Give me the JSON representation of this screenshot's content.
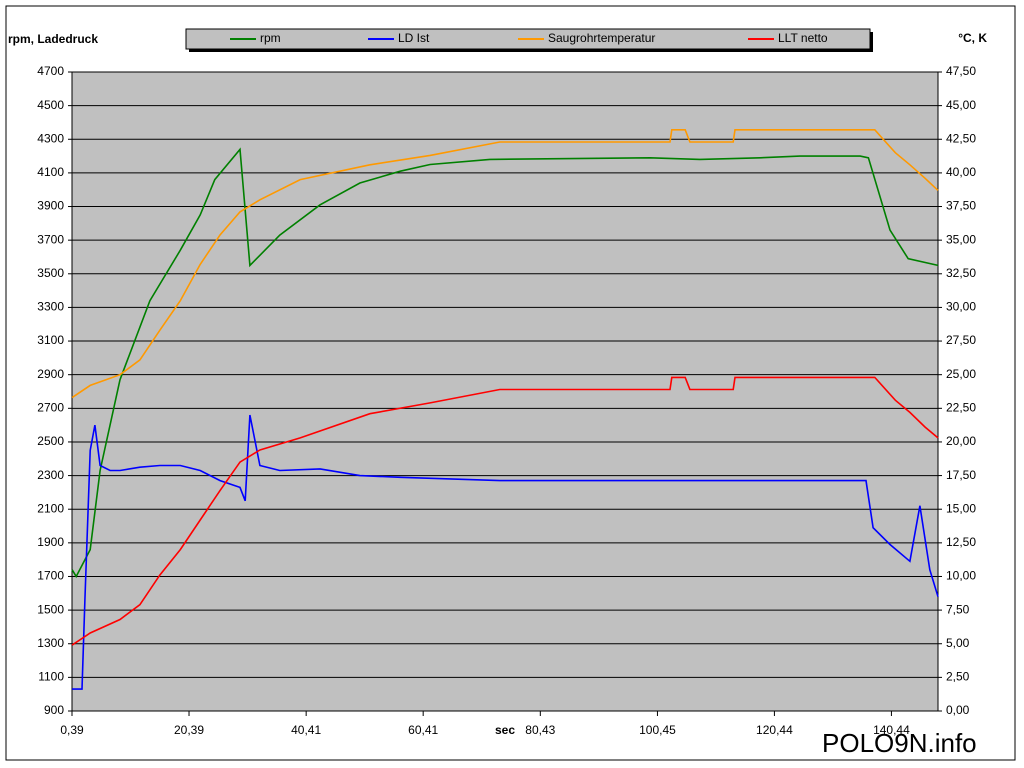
{
  "chart_data": {
    "type": "line",
    "y_label": "rpm, Ladedruck",
    "y2_label": "°C, K",
    "x_label": "sec",
    "watermark": "POLO9N.info",
    "xlim": [
      0.39,
      148.4
    ],
    "xticks": [
      {
        "value": 0.39,
        "label": "0,39"
      },
      {
        "value": 20.39,
        "label": "20,39"
      },
      {
        "value": 40.41,
        "label": "40,41"
      },
      {
        "value": 60.41,
        "label": "60,41"
      },
      {
        "value": 80.43,
        "label": "80,43"
      },
      {
        "value": 100.45,
        "label": "100,45"
      },
      {
        "value": 120.44,
        "label": "120,44"
      },
      {
        "value": 140.44,
        "label": "140,44"
      }
    ],
    "ylim": [
      900,
      4700
    ],
    "yticks": [
      900,
      1100,
      1300,
      1500,
      1700,
      1900,
      2100,
      2300,
      2500,
      2700,
      2900,
      3100,
      3300,
      3500,
      3700,
      3900,
      4100,
      4300,
      4500,
      4700
    ],
    "y2lim": [
      0,
      47.5
    ],
    "y2ticks": [
      {
        "value": 0,
        "label": "0,00"
      },
      {
        "value": 2.5,
        "label": "2,50"
      },
      {
        "value": 5,
        "label": "5,00"
      },
      {
        "value": 7.5,
        "label": "7,50"
      },
      {
        "value": 10,
        "label": "10,00"
      },
      {
        "value": 12.5,
        "label": "12,50"
      },
      {
        "value": 15,
        "label": "15,00"
      },
      {
        "value": 17.5,
        "label": "17,50"
      },
      {
        "value": 20,
        "label": "20,00"
      },
      {
        "value": 22.5,
        "label": "22,50"
      },
      {
        "value": 25,
        "label": "25,00"
      },
      {
        "value": 27.5,
        "label": "27,50"
      },
      {
        "value": 30,
        "label": "30,00"
      },
      {
        "value": 32.5,
        "label": "32,50"
      },
      {
        "value": 35,
        "label": "35,00"
      },
      {
        "value": 37.5,
        "label": "37,50"
      },
      {
        "value": 40,
        "label": "40,00"
      },
      {
        "value": 42.5,
        "label": "42,50"
      },
      {
        "value": 45,
        "label": "45,00"
      },
      {
        "value": 47.5,
        "label": "47,50"
      }
    ],
    "grid": true,
    "series": [
      {
        "name": "rpm",
        "color": "#008000",
        "x": [
          0.4,
          1.1,
          3.5,
          5.2,
          8.6,
          13.7,
          18.9,
          22.3,
          24.8,
          29.1,
          30.8,
          32.5,
          35.9,
          42.8,
          49.6,
          56.5,
          61.6,
          71.8,
          99.2,
          107.7,
          118.0,
          124.8,
          135.1,
          136.5,
          140.2,
          143.3,
          148.4
        ],
        "values": [
          1740,
          1700,
          1860,
          2330,
          2870,
          3340,
          3640,
          3850,
          4060,
          4240,
          3550,
          3610,
          3730,
          3910,
          4040,
          4110,
          4150,
          4180,
          4190,
          4180,
          4190,
          4200,
          4200,
          4190,
          3760,
          3590,
          3550
        ]
      },
      {
        "name": "LD Ist",
        "color": "#0000ff",
        "x": [
          0.4,
          2.1,
          2.6,
          3.5,
          4.3,
          5.2,
          6.9,
          8.6,
          12.0,
          15.4,
          18.9,
          22.3,
          25.7,
          29.1,
          30.0,
          30.8,
          32.5,
          35.9,
          42.8,
          49.6,
          56.5,
          73.5,
          99.2,
          124.8,
          136.1,
          137.3,
          140.2,
          143.6,
          145.3,
          147.0,
          148.4
        ],
        "values": [
          1030,
          1030,
          1560,
          2450,
          2600,
          2360,
          2330,
          2330,
          2350,
          2360,
          2360,
          2330,
          2270,
          2230,
          2150,
          2660,
          2360,
          2330,
          2340,
          2300,
          2290,
          2270,
          2270,
          2270,
          2270,
          1990,
          1890,
          1790,
          2120,
          1740,
          1580
        ]
      },
      {
        "name": "Saugrohrtemperatur",
        "color": "#ff9900",
        "axis": "y2",
        "x": [
          0.4,
          3.5,
          8.6,
          12.0,
          15.4,
          18.9,
          22.3,
          25.7,
          29.1,
          32.5,
          39.4,
          51.3,
          61.6,
          73.5,
          102.6,
          102.9,
          105.2,
          106.0,
          113.4,
          113.7,
          137.6,
          141.1,
          143.6,
          146.2,
          148.4
        ],
        "values": [
          23.3,
          24.2,
          25.0,
          26.1,
          28.3,
          30.5,
          33.2,
          35.4,
          37.1,
          38.0,
          39.5,
          40.6,
          41.3,
          42.3,
          42.3,
          43.2,
          43.2,
          42.3,
          42.3,
          43.2,
          43.2,
          41.5,
          40.6,
          39.6,
          38.7
        ]
      },
      {
        "name": "LLT netto",
        "color": "#ff0000",
        "axis": "y2",
        "x": [
          0.4,
          3.5,
          8.6,
          12.0,
          15.4,
          18.9,
          22.3,
          25.7,
          29.1,
          32.5,
          39.4,
          51.3,
          61.6,
          73.5,
          102.6,
          102.9,
          105.2,
          106.0,
          113.4,
          113.7,
          137.6,
          141.1,
          143.6,
          146.2,
          148.4
        ],
        "values": [
          4.9,
          5.8,
          6.8,
          7.9,
          10.1,
          12.0,
          14.2,
          16.4,
          18.5,
          19.4,
          20.3,
          22.1,
          22.9,
          23.9,
          23.9,
          24.8,
          24.8,
          23.9,
          23.9,
          24.8,
          24.8,
          23.1,
          22.2,
          21.1,
          20.3
        ]
      }
    ]
  }
}
